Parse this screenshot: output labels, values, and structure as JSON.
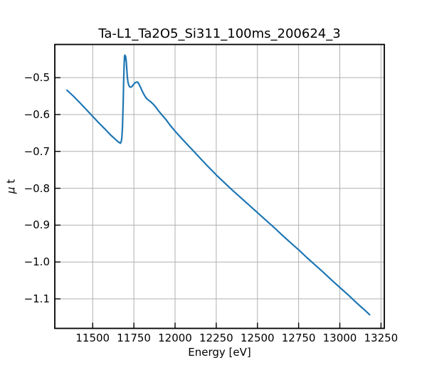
{
  "chart_data": {
    "type": "line",
    "title": "Ta-L1_Ta2O5_Si311_100ms_200624_3",
    "xlabel": "Energy [eV]",
    "ylabel": "μ t",
    "xlim": [
      11270,
      13270
    ],
    "ylim": [
      -1.18,
      -0.41
    ],
    "xticks": [
      11500,
      11750,
      12000,
      12250,
      12500,
      12750,
      13000,
      13250
    ],
    "xtick_labels": [
      "11500",
      "11750",
      "12000",
      "12250",
      "12500",
      "12750",
      "13000",
      "13250"
    ],
    "yticks": [
      -0.5,
      -0.6,
      -0.7,
      -0.8,
      -0.9,
      -1.0,
      -1.1
    ],
    "ytick_labels": [
      "−0.5",
      "−0.6",
      "−0.7",
      "−0.8",
      "−0.9",
      "−1.0",
      "−1.1"
    ],
    "grid": true,
    "grid_color": "#b0b0b0",
    "line_color": "#1f77b4",
    "points": [
      [
        11344,
        -0.534
      ],
      [
        11380,
        -0.549
      ],
      [
        11420,
        -0.567
      ],
      [
        11460,
        -0.586
      ],
      [
        11500,
        -0.605
      ],
      [
        11540,
        -0.624
      ],
      [
        11580,
        -0.642
      ],
      [
        11610,
        -0.656
      ],
      [
        11635,
        -0.666
      ],
      [
        11652,
        -0.673
      ],
      [
        11661,
        -0.676
      ],
      [
        11668,
        -0.678
      ],
      [
        11673,
        -0.674
      ],
      [
        11677,
        -0.663
      ],
      [
        11681,
        -0.634
      ],
      [
        11685,
        -0.568
      ],
      [
        11688,
        -0.506
      ],
      [
        11691,
        -0.462
      ],
      [
        11693,
        -0.443
      ],
      [
        11695,
        -0.439
      ],
      [
        11697,
        -0.452
      ],
      [
        11699,
        -0.441
      ],
      [
        11701,
        -0.445
      ],
      [
        11704,
        -0.458
      ],
      [
        11707,
        -0.478
      ],
      [
        11710,
        -0.498
      ],
      [
        11714,
        -0.512
      ],
      [
        11719,
        -0.52
      ],
      [
        11725,
        -0.525
      ],
      [
        11731,
        -0.526
      ],
      [
        11738,
        -0.524
      ],
      [
        11747,
        -0.519
      ],
      [
        11757,
        -0.514
      ],
      [
        11766,
        -0.512
      ],
      [
        11773,
        -0.512
      ],
      [
        11780,
        -0.517
      ],
      [
        11790,
        -0.526
      ],
      [
        11802,
        -0.538
      ],
      [
        11815,
        -0.549
      ],
      [
        11828,
        -0.557
      ],
      [
        11842,
        -0.562
      ],
      [
        11856,
        -0.567
      ],
      [
        11870,
        -0.573
      ],
      [
        11885,
        -0.581
      ],
      [
        11900,
        -0.59
      ],
      [
        11920,
        -0.601
      ],
      [
        11945,
        -0.614
      ],
      [
        11970,
        -0.629
      ],
      [
        12000,
        -0.645
      ],
      [
        12040,
        -0.665
      ],
      [
        12080,
        -0.684
      ],
      [
        12120,
        -0.703
      ],
      [
        12160,
        -0.722
      ],
      [
        12200,
        -0.741
      ],
      [
        12250,
        -0.764
      ],
      [
        12300,
        -0.785
      ],
      [
        12350,
        -0.806
      ],
      [
        12400,
        -0.826
      ],
      [
        12450,
        -0.846
      ],
      [
        12500,
        -0.866
      ],
      [
        12550,
        -0.886
      ],
      [
        12600,
        -0.906
      ],
      [
        12650,
        -0.927
      ],
      [
        12700,
        -0.947
      ],
      [
        12750,
        -0.967
      ],
      [
        12800,
        -0.988
      ],
      [
        12850,
        -1.008
      ],
      [
        12900,
        -1.028
      ],
      [
        12950,
        -1.049
      ],
      [
        13000,
        -1.069
      ],
      [
        13050,
        -1.089
      ],
      [
        13100,
        -1.11
      ],
      [
        13150,
        -1.13
      ],
      [
        13181,
        -1.143
      ]
    ]
  }
}
